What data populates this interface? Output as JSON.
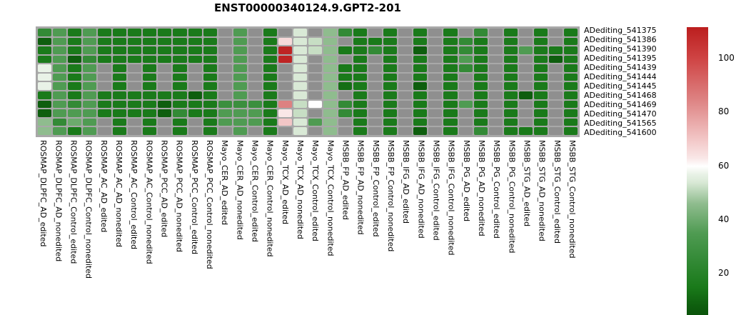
{
  "title": "ENST00000340124.9.GPT2-201",
  "chart_data": {
    "type": "heatmap",
    "title": "ENST00000340124.9.GPT2-201",
    "rows": [
      "ADediting_541375",
      "ADediting_541386",
      "ADediting_541390",
      "ADediting_541395",
      "ADediting_541439",
      "ADediting_541444",
      "ADediting_541445",
      "ADediting_541468",
      "ADediting_541469",
      "ADediting_541470",
      "ADediting_541565",
      "ADediting_541600"
    ],
    "columns": [
      "ROSMAP_DLPFC_AD_edited",
      "ROSMAP_DLPFC_AD_nonedited",
      "ROSMAP_DLPFC_Control_edited",
      "ROSMAP_DLPFC_Control_nonedited",
      "ROSMAP_AC_AD_edited",
      "ROSMAP_AC_AD_nonedited",
      "ROSMAP_AC_Control_edited",
      "ROSMAP_AC_Control_nonedited",
      "ROSMAP_PCC_AD_edited",
      "ROSMAP_PCC_AD_nonedited",
      "ROSMAP_PCC_Control_edited",
      "ROSMAP_PCC_Control_nonedited",
      "Mayo_CER_AD_edited",
      "Mayo_CER_AD_nonedited",
      "Mayo_CER_Control_edited",
      "Mayo_CER_Control_nonedited",
      "Mayo_TCX_AD_edited",
      "Mayo_TCX_AD_nonedited",
      "Mayo_TCX_Control_edited",
      "Mayo_TCX_Control_nonedited",
      "MSBB_FP_AD_edited",
      "MSBB_FP_AD_nonedited",
      "MSBB_FP_Control_edited",
      "MSBB_FP_Control_nonedited",
      "MSBB_IFG_AD_edited",
      "MSBB_IFG_AD_nonedited",
      "MSBB_IFG_Control_edited",
      "MSBB_IFG_Control_nonedited",
      "MSBB_PG_AD_edited",
      "MSBB_PG_AD_nonedited",
      "MSBB_PG_Control_edited",
      "MSBB_PG_Control_nonedited",
      "MSBB_STG_AD_edited",
      "MSBB_STG_AD_nonedited",
      "MSBB_STG_Control_edited",
      "MSBB_STG_Control_nonedited"
    ],
    "values": [
      [
        25,
        35,
        15,
        35,
        15,
        15,
        15,
        15,
        15,
        15,
        15,
        15,
        null,
        35,
        null,
        15,
        null,
        54,
        null,
        46,
        25,
        15,
        null,
        15,
        null,
        15,
        null,
        15,
        null,
        25,
        null,
        15,
        null,
        15,
        null,
        15
      ],
      [
        8,
        35,
        15,
        35,
        15,
        15,
        15,
        15,
        15,
        15,
        15,
        15,
        null,
        35,
        null,
        15,
        66,
        54,
        52,
        46,
        null,
        15,
        15,
        15,
        null,
        15,
        null,
        15,
        25,
        15,
        null,
        15,
        null,
        15,
        null,
        15
      ],
      [
        15,
        35,
        15,
        35,
        15,
        15,
        15,
        15,
        15,
        15,
        15,
        15,
        null,
        35,
        null,
        15,
        110,
        54,
        52,
        46,
        15,
        15,
        25,
        15,
        null,
        8,
        null,
        15,
        25,
        15,
        null,
        15,
        35,
        15,
        15,
        15
      ],
      [
        15,
        35,
        8,
        25,
        15,
        15,
        15,
        15,
        15,
        15,
        15,
        15,
        null,
        35,
        null,
        15,
        110,
        54,
        null,
        46,
        null,
        15,
        null,
        15,
        null,
        15,
        null,
        15,
        35,
        15,
        null,
        15,
        null,
        15,
        8,
        15
      ],
      [
        57,
        35,
        15,
        35,
        null,
        15,
        null,
        15,
        null,
        15,
        null,
        15,
        null,
        35,
        null,
        15,
        null,
        54,
        null,
        46,
        15,
        15,
        null,
        15,
        null,
        15,
        null,
        15,
        25,
        15,
        null,
        15,
        null,
        15,
        null,
        15
      ],
      [
        57,
        35,
        15,
        35,
        null,
        15,
        null,
        15,
        null,
        15,
        null,
        15,
        null,
        35,
        null,
        15,
        null,
        54,
        null,
        46,
        15,
        15,
        null,
        15,
        null,
        15,
        null,
        15,
        null,
        15,
        null,
        15,
        null,
        15,
        null,
        15
      ],
      [
        57,
        35,
        15,
        35,
        null,
        15,
        null,
        15,
        null,
        15,
        null,
        15,
        null,
        35,
        null,
        15,
        null,
        54,
        null,
        46,
        12,
        15,
        null,
        15,
        null,
        8,
        null,
        15,
        null,
        15,
        null,
        15,
        null,
        15,
        null,
        15
      ],
      [
        15,
        35,
        15,
        35,
        15,
        15,
        15,
        15,
        15,
        15,
        8,
        15,
        null,
        35,
        null,
        15,
        null,
        54,
        null,
        46,
        null,
        15,
        null,
        15,
        null,
        15,
        null,
        15,
        null,
        15,
        null,
        15,
        8,
        15,
        null,
        15
      ],
      [
        8,
        35,
        25,
        35,
        15,
        15,
        15,
        15,
        8,
        15,
        15,
        15,
        28,
        28,
        28,
        15,
        85,
        52,
        60,
        46,
        25,
        15,
        null,
        15,
        null,
        15,
        null,
        15,
        35,
        15,
        null,
        15,
        null,
        15,
        null,
        15
      ],
      [
        8,
        35,
        35,
        35,
        15,
        15,
        15,
        15,
        8,
        25,
        15,
        15,
        35,
        35,
        35,
        15,
        63,
        52,
        null,
        46,
        25,
        15,
        null,
        15,
        null,
        15,
        null,
        15,
        null,
        15,
        null,
        15,
        null,
        15,
        null,
        15
      ],
      [
        46,
        25,
        40,
        35,
        null,
        15,
        null,
        15,
        null,
        15,
        null,
        15,
        35,
        35,
        35,
        15,
        70,
        54,
        35,
        46,
        null,
        15,
        null,
        15,
        null,
        15,
        null,
        15,
        null,
        15,
        null,
        15,
        null,
        15,
        null,
        15
      ],
      [
        46,
        35,
        15,
        35,
        null,
        15,
        null,
        15,
        null,
        15,
        null,
        15,
        null,
        35,
        null,
        15,
        null,
        54,
        null,
        46,
        null,
        15,
        null,
        15,
        null,
        8,
        null,
        15,
        null,
        25,
        null,
        15,
        15,
        15,
        null,
        15
      ]
    ],
    "colorbar": {
      "ticks": [
        100,
        80,
        60,
        40,
        20
      ],
      "domain_top": 111.7,
      "domain_bottom": 4.6
    },
    "colors": {
      "na": "#8f8f8f",
      "panel_bg": "#a8a8a8",
      "stops": [
        [
          4.6,
          "#0b540b"
        ],
        [
          8,
          "#0e5e0e"
        ],
        [
          15,
          "#1a7a1a"
        ],
        [
          25,
          "#338a36"
        ],
        [
          35,
          "#4f9b52"
        ],
        [
          46,
          "#8fbc8e"
        ],
        [
          54,
          "#d9e9d6"
        ],
        [
          57,
          "#e9f2e7"
        ],
        [
          60,
          "#ffffff"
        ],
        [
          63,
          "#f9e7e7"
        ],
        [
          70,
          "#f2c6c6"
        ],
        [
          85,
          "#dd8181"
        ],
        [
          100,
          "#cf4444"
        ],
        [
          111.7,
          "#bb1e1e"
        ]
      ]
    },
    "legend_position": "right",
    "grid": false
  }
}
